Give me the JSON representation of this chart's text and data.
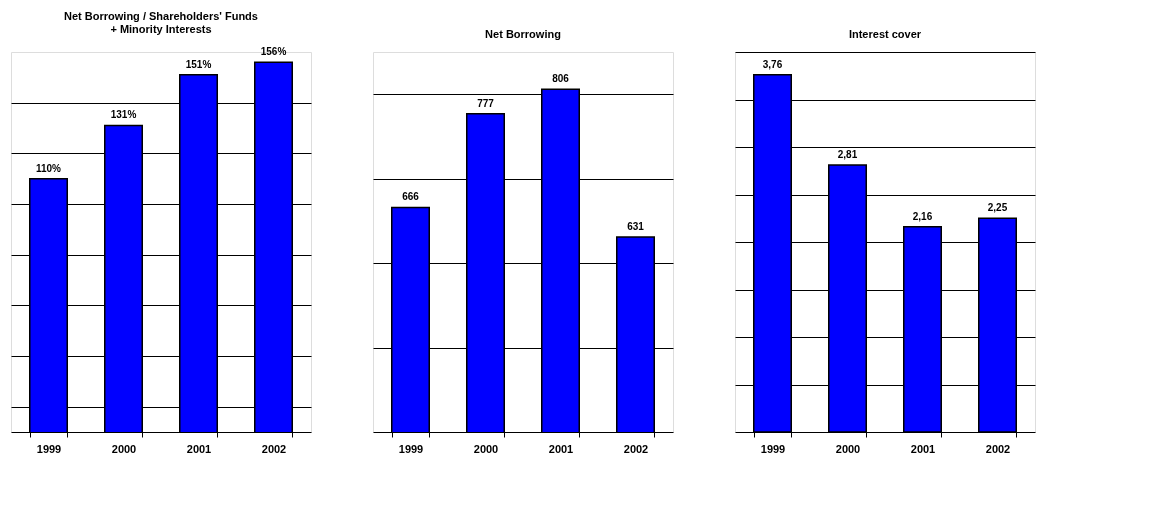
{
  "chart_data": [
    {
      "type": "bar",
      "title": "Net Borrowing / Shareholders' Funds\n+ Minority Interests",
      "categories": [
        "1999",
        "2000",
        "2001",
        "2002"
      ],
      "values": [
        110,
        131,
        151,
        156
      ],
      "value_labels": [
        "110%",
        "131%",
        "151%",
        "156%"
      ],
      "color": "#0000ff",
      "ylim": [
        10,
        160
      ],
      "yticks": [
        {
          "value": 20,
          "label": null
        },
        {
          "value": 40,
          "label": null
        },
        {
          "value": 60,
          "label": null
        },
        {
          "value": 80,
          "label": null
        },
        {
          "value": 100,
          "label": null
        },
        {
          "value": 120,
          "label": null
        },
        {
          "value": 140,
          "label": null
        }
      ],
      "grid": "y",
      "tick_labels": "x"
    },
    {
      "type": "bar",
      "title": "Net Borrowing",
      "categories": [
        "1999",
        "2000",
        "2001",
        "2002"
      ],
      "values": [
        666,
        777,
        806,
        631
      ],
      "value_labels": [
        "666",
        "777",
        "806",
        "631"
      ],
      "color": "#0000ff",
      "ylim": [
        400,
        850
      ],
      "yticks": [
        {
          "value": 500,
          "label": null
        },
        {
          "value": 600,
          "label": null
        },
        {
          "value": 700,
          "label": null
        },
        {
          "value": 800,
          "label": null
        }
      ],
      "grid": "y",
      "tick_labels": "x"
    },
    {
      "type": "bar",
      "title": "Interest cover",
      "categories": [
        "1999",
        "2000",
        "2001",
        "2002"
      ],
      "values": [
        3.76,
        2.81,
        2.16,
        2.25
      ],
      "value_labels": [
        "3,76",
        "2,81",
        "2,16",
        "2,25"
      ],
      "color": "#0000ff",
      "ylim": [
        0,
        4
      ],
      "yticks": [
        {
          "value": 0.5,
          "label": null
        },
        {
          "value": 1,
          "label": null
        },
        {
          "value": 1.5,
          "label": null
        },
        {
          "value": 2,
          "label": null
        },
        {
          "value": 2.5,
          "label": null
        },
        {
          "value": 3,
          "label": null
        },
        {
          "value": 3.5,
          "label": null
        },
        {
          "value": 4,
          "label": null
        }
      ],
      "grid": "y",
      "tick_labels": "x"
    }
  ]
}
